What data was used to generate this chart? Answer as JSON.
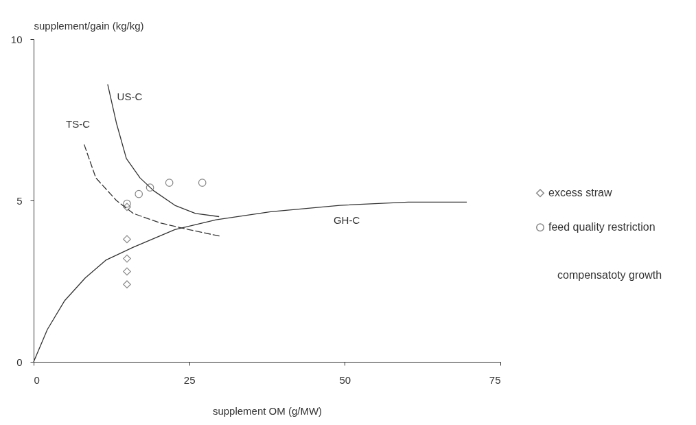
{
  "chart_data": {
    "type": "line",
    "xlabel": "supplement OM (g/MW)",
    "ylabel": "supplement/gain (kg/kg)",
    "xlim": [
      0,
      75
    ],
    "ylim": [
      0,
      10
    ],
    "xticks": [
      0,
      25,
      50,
      75
    ],
    "yticks": [
      0,
      5,
      10
    ],
    "grid": false,
    "legend": "right",
    "series": [
      {
        "name": "US-C",
        "color": "#333333",
        "line_style": "solid",
        "marker": "none",
        "x": [
          11.9,
          13.3,
          14.9,
          17.1,
          19.3,
          22.7,
          26,
          29.8
        ],
        "values": [
          8.6,
          7.4,
          6.3,
          5.7,
          5.3,
          4.85,
          4.6,
          4.5
        ]
      },
      {
        "name": "TS-C",
        "color": "#333333",
        "line_style": "dashed",
        "marker": "none",
        "x": [
          8,
          10,
          13.3,
          16,
          20.4,
          24.9,
          29.8
        ],
        "values": [
          6.8,
          5.7,
          5.0,
          4.6,
          4.3,
          4.1,
          3.9
        ]
      },
      {
        "name": "GH-C",
        "color": "#333333",
        "line_style": "solid",
        "marker": "none",
        "x": [
          0,
          2.2,
          5,
          8.3,
          11.6,
          16,
          22.7,
          29.3,
          38.1,
          49.2,
          60.2,
          69.6
        ],
        "values": [
          0,
          1.0,
          1.9,
          2.6,
          3.15,
          3.55,
          4.1,
          4.4,
          4.65,
          4.85,
          4.95,
          4.95
        ]
      },
      {
        "type": "scatter",
        "name": "excess straw",
        "color": "#555555",
        "marker": "diamond",
        "x": [
          15,
          15,
          15,
          15,
          15
        ],
        "values": [
          4.8,
          3.8,
          3.2,
          2.8,
          2.4
        ]
      },
      {
        "type": "scatter",
        "name": "feed quality restriction",
        "color": "#555555",
        "marker": "circle",
        "x": [
          15,
          16.9,
          18.7,
          21.8,
          27.1
        ],
        "values": [
          4.9,
          5.2,
          5.4,
          5.55,
          5.55
        ]
      }
    ],
    "annotations": [
      "compensatoty growth"
    ]
  }
}
